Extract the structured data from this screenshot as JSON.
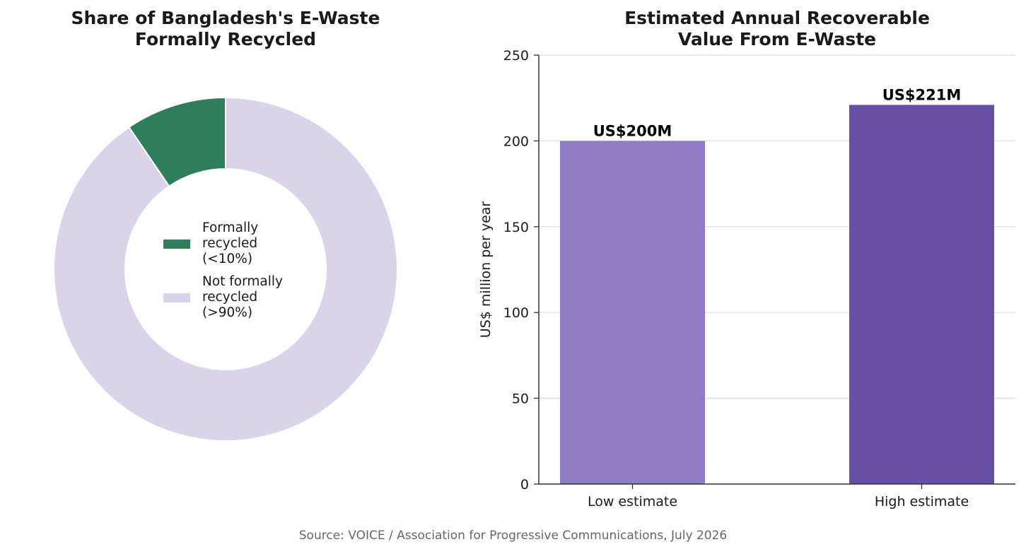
{
  "chart_data": [
    {
      "type": "pie",
      "title": "Share of Bangladesh's E-Waste\nFormally Recycled",
      "donut": true,
      "slices": [
        {
          "label": "Formally\nrecycled\n(<10%)",
          "value": 9.5,
          "color": "#2e7d5b"
        },
        {
          "label": "Not formally\nrecycled\n(>90%)",
          "value": 90.5,
          "color": "#dad4ea"
        }
      ],
      "legend_position": "center"
    },
    {
      "type": "bar",
      "title": "Estimated Annual Recoverable\nValue From E-Waste",
      "categories": [
        "Low estimate",
        "High estimate"
      ],
      "values": [
        200,
        221
      ],
      "data_labels": [
        "US$200M",
        "US$221M"
      ],
      "colors": [
        "#8f7dc4",
        "#674fa6"
      ],
      "xlabel": "",
      "ylabel": "US$ million per year",
      "ylim": [
        0,
        250
      ],
      "yticks": [
        0,
        50,
        100,
        150,
        200,
        250
      ],
      "grid": "y"
    }
  ],
  "source": "Source: VOICE / Association for Progressive Communications, July 2026"
}
